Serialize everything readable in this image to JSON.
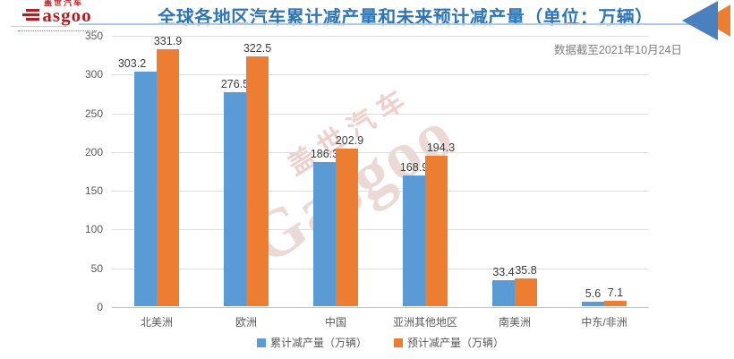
{
  "header": {
    "logo": {
      "brand_cn": "盖世汽车",
      "brand_en": "asgoo"
    },
    "title": "全球各地区汽车累计减产量和未来预计减产量（单位：万辆）",
    "date_note": "数据截至2021年10月24日",
    "brand_colors": {
      "red": "#B01F24",
      "icon_blue": "#4A80BE",
      "icon_orange": "#ED7D31"
    }
  },
  "watermark": {
    "line_cn": "盖世汽车",
    "line_en": "Gasgoo"
  },
  "chart_data": {
    "type": "bar",
    "title": "全球各地区汽车累计减产量和未来预计减产量（单位：万辆）",
    "unit": "万辆",
    "categories": [
      "北美洲",
      "欧洲",
      "中国",
      "亚洲其他地区",
      "南美洲",
      "中东/非洲"
    ],
    "series": [
      {
        "name": "累计减产量（万辆）",
        "color": "#5B9BD5",
        "values": [
          303.2,
          276.5,
          186.3,
          168.9,
          33.4,
          5.6
        ]
      },
      {
        "name": "预计减产量（万辆）",
        "color": "#ED7D31",
        "values": [
          331.9,
          322.5,
          202.9,
          194.3,
          35.8,
          7.1
        ]
      }
    ],
    "ylim": [
      0,
      350
    ],
    "yticks": [
      0,
      50,
      100,
      150,
      200,
      250,
      300,
      350
    ],
    "grid": true,
    "legend_position": "bottom",
    "data_labels": true,
    "label_dx": [
      [
        -15,
        0,
        0,
        0,
        0,
        0
      ],
      [
        0,
        0,
        3,
        5,
        0,
        0
      ]
    ]
  },
  "theme": {
    "grid_color": "#DEDEDE",
    "axis_color": "#C4C4C4",
    "tick_color": "#595959",
    "value_label_color": "#3B3B3B",
    "title_color": "#2E75B6",
    "note_color": "#7F7F7F",
    "rule_color": "#AECBE5",
    "watermark_color": "#EBD9D6"
  }
}
